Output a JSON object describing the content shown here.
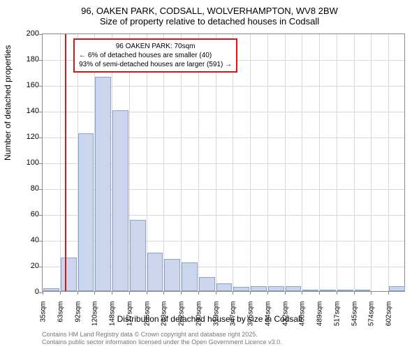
{
  "chart": {
    "type": "histogram",
    "title_main": "96, OAKEN PARK, CODSALL, WOLVERHAMPTON, WV8 2BW",
    "title_sub": "Size of property relative to detached houses in Codsall",
    "y_axis_label": "Number of detached properties",
    "x_axis_label": "Distribution of detached houses by size in Codsall",
    "ylim": [
      0,
      200
    ],
    "ytick_step": 20,
    "x_labels": [
      "35sqm",
      "63sqm",
      "92sqm",
      "120sqm",
      "148sqm",
      "177sqm",
      "205sqm",
      "233sqm",
      "262sqm",
      "290sqm",
      "319sqm",
      "347sqm",
      "375sqm",
      "404sqm",
      "432sqm",
      "460sqm",
      "489sqm",
      "517sqm",
      "545sqm",
      "574sqm",
      "602sqm"
    ],
    "bar_values": [
      2,
      26,
      122,
      166,
      140,
      55,
      30,
      25,
      22,
      11,
      6,
      3,
      4,
      4,
      4,
      1,
      1,
      1,
      1,
      0,
      4
    ],
    "bar_color": "#cbd6ed",
    "bar_border_color": "#8ba3d0",
    "grid_color": "#d8d8d8",
    "background_color": "#ffffff",
    "title_fontsize": 13,
    "label_fontsize": 12,
    "tick_fontsize": 11,
    "marker": {
      "x_value": 70,
      "x_range": [
        35,
        602
      ],
      "line_color": "#d01818",
      "box_title": "96 OAKEN PARK: 70sqm",
      "line1": "← 6% of detached houses are smaller (40)",
      "line2": "93% of semi-detached houses are larger (591) →"
    },
    "footer_line1": "Contains HM Land Registry data © Crown copyright and database right 2025.",
    "footer_line2": "Contains public sector information licensed under the Open Government Licence v3.0."
  }
}
